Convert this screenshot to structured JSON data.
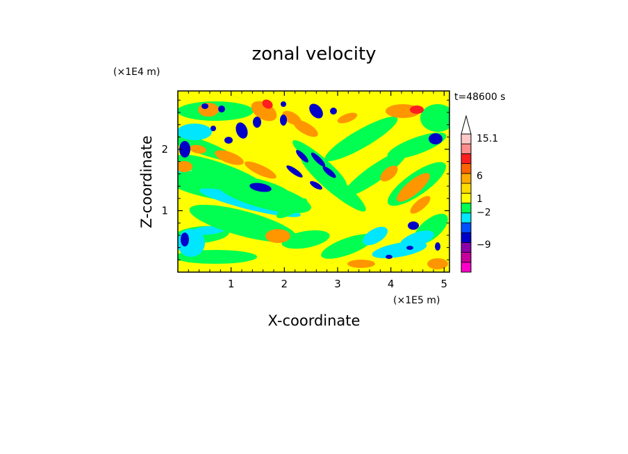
{
  "chart_data": {
    "type": "heatmap",
    "title": "zonal velocity",
    "xlabel": "X-coordinate",
    "ylabel": "Z-coordinate",
    "x_unit": "(×1E5 m)",
    "y_unit": "(×1E4 m)",
    "time_label": "t=48600 s",
    "xlim": [
      0,
      5.1
    ],
    "ylim": [
      0,
      2.95
    ],
    "x_ticks": [
      "1",
      "2",
      "3",
      "4",
      "5"
    ],
    "x_tick_values": [
      1,
      2,
      3,
      4,
      5
    ],
    "y_ticks": [
      "1",
      "2"
    ],
    "y_tick_values": [
      1,
      2
    ],
    "colorbar": {
      "levels": [
        -15.1,
        -12,
        -9,
        -6,
        -2,
        -1,
        0,
        1,
        2,
        3,
        6,
        9,
        12,
        15.1
      ],
      "labels": [
        "15.1",
        "6",
        "1",
        "−2",
        "−9"
      ],
      "label_values": [
        15.1,
        6,
        1,
        -2,
        -9
      ],
      "colors": [
        "#ff00c8",
        "#c8009b",
        "#8c00aa",
        "#0000c8",
        "#0050ff",
        "#00e6ff",
        "#00ff50",
        "#ffff00",
        "#ffdc00",
        "#ffaa00",
        "#ff6400",
        "#ff1e1e",
        "#ff8c8c",
        "#ffc8c8"
      ],
      "extend_max_triangle": true
    },
    "palette": {
      "magenta": "#ff00c8",
      "purple": "#8c00aa",
      "blue": "#0000c8",
      "cyan": "#00e6ff",
      "green": "#00ff50",
      "yellow": "#ffff00",
      "orange": "#ff9600",
      "red": "#ff1e1e",
      "pink": "#ffc8c8"
    }
  }
}
